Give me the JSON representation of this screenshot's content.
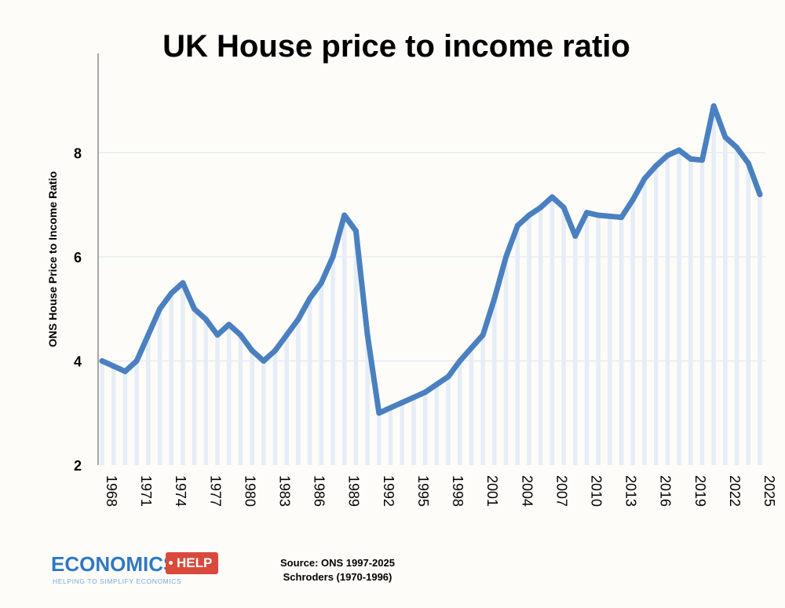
{
  "chart_data": {
    "type": "line",
    "title": "UK House price to income ratio",
    "ylabel": "ONS House Price to Income Ratio",
    "xlabel": "",
    "ylim": [
      2,
      10
    ],
    "yticks": [
      2,
      4,
      6,
      8
    ],
    "xticks": [
      1968,
      1971,
      1974,
      1977,
      1980,
      1983,
      1986,
      1989,
      1992,
      1995,
      1998,
      2001,
      2004,
      2007,
      2010,
      2013,
      2016,
      2019,
      2022,
      2025
    ],
    "grid": "horizontal",
    "series": [
      {
        "color": "#4a80c0",
        "x": [
          1968,
          1969,
          1970,
          1971,
          1972,
          1973,
          1974,
          1975,
          1976,
          1977,
          1978,
          1979,
          1980,
          1981,
          1982,
          1983,
          1984,
          1985,
          1986,
          1987,
          1988,
          1989,
          1990,
          1991,
          1992,
          1993,
          1994,
          1995,
          1996,
          1997,
          1998,
          1999,
          2000,
          2001,
          2002,
          2003,
          2004,
          2005,
          2006,
          2007,
          2008,
          2009,
          2010,
          2011,
          2012,
          2013,
          2014,
          2015,
          2016,
          2017,
          2018,
          2019,
          2020,
          2021,
          2022,
          2023,
          2024,
          2025
        ],
        "values": [
          4.0,
          3.9,
          3.8,
          4.0,
          4.5,
          5.0,
          5.3,
          5.5,
          5.0,
          4.8,
          4.5,
          4.7,
          4.5,
          4.2,
          4.0,
          4.2,
          4.5,
          4.8,
          5.2,
          5.5,
          6.0,
          6.8,
          6.5,
          4.5,
          3.0,
          3.1,
          3.2,
          3.3,
          3.4,
          3.55,
          3.7,
          4.0,
          4.25,
          4.5,
          5.2,
          6.0,
          6.6,
          6.8,
          6.95,
          7.15,
          6.95,
          6.4,
          6.85,
          6.8,
          6.78,
          6.76,
          7.1,
          7.5,
          7.75,
          7.95,
          8.05,
          7.88,
          7.86,
          8.9,
          8.3,
          8.1,
          7.8,
          7.2
        ]
      }
    ]
  },
  "footer": {
    "logo_word": "ECONOMICS",
    "logo_tag": "HELP",
    "logo_sub": "HELPING TO SIMPLIFY ECONOMICS",
    "source_line1": "Source: ONS 1997-2025",
    "source_line2": "Schroders (1970-1996)"
  }
}
